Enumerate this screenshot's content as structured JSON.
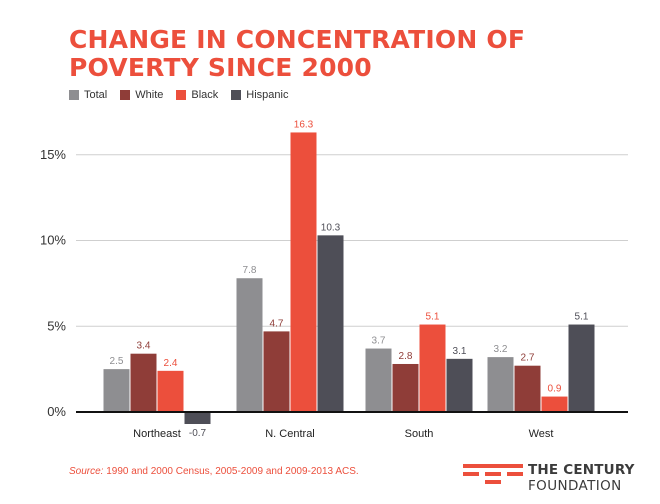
{
  "header": {
    "title": "CHANGE IN CONCENTRATION OF POVERTY SINCE 2000"
  },
  "legend": {
    "items": [
      {
        "label": "Total",
        "color": "#8e8e91"
      },
      {
        "label": "White",
        "color": "#8f3d38"
      },
      {
        "label": "Black",
        "color": "#ec4f3c"
      },
      {
        "label": "Hispanic",
        "color": "#4e4e57"
      }
    ]
  },
  "chart_data": {
    "type": "bar",
    "title": "CHANGE IN CONCENTRATION OF POVERTY SINCE 2000",
    "xlabel": "",
    "ylabel": "",
    "categories": [
      "Northeast",
      "N. Central",
      "South",
      "West"
    ],
    "series": [
      {
        "name": "Total",
        "values": [
          2.5,
          7.8,
          3.7,
          3.2
        ]
      },
      {
        "name": "White",
        "values": [
          3.4,
          4.7,
          2.8,
          2.7
        ]
      },
      {
        "name": "Black",
        "values": [
          2.4,
          16.3,
          5.1,
          0.9
        ]
      },
      {
        "name": "Hispanic",
        "values": [
          -0.7,
          10.3,
          3.1,
          5.1
        ]
      }
    ],
    "ylim": [
      -1,
      17
    ],
    "yticks": [
      0,
      5,
      10,
      15
    ],
    "ytick_labels": [
      "0%",
      "5%",
      "10%",
      "15%"
    ],
    "grid": true,
    "legend": "top-left",
    "colors": [
      "#8e8e91",
      "#8f3d38",
      "#ec4f3c",
      "#4e4e57"
    ],
    "label_colors": [
      "#8e8e91",
      "#8f3d38",
      "#ec4f3c",
      "#4e4e57"
    ]
  },
  "footer": {
    "source_label": "Source:",
    "source_text": "1990 and 2000 Census, 2005-2009 and 2009-2013 ACS.",
    "logo_line1": "THE CENTURY",
    "logo_line2": "FOUNDATION",
    "logo_color": "#ec4f3c"
  }
}
